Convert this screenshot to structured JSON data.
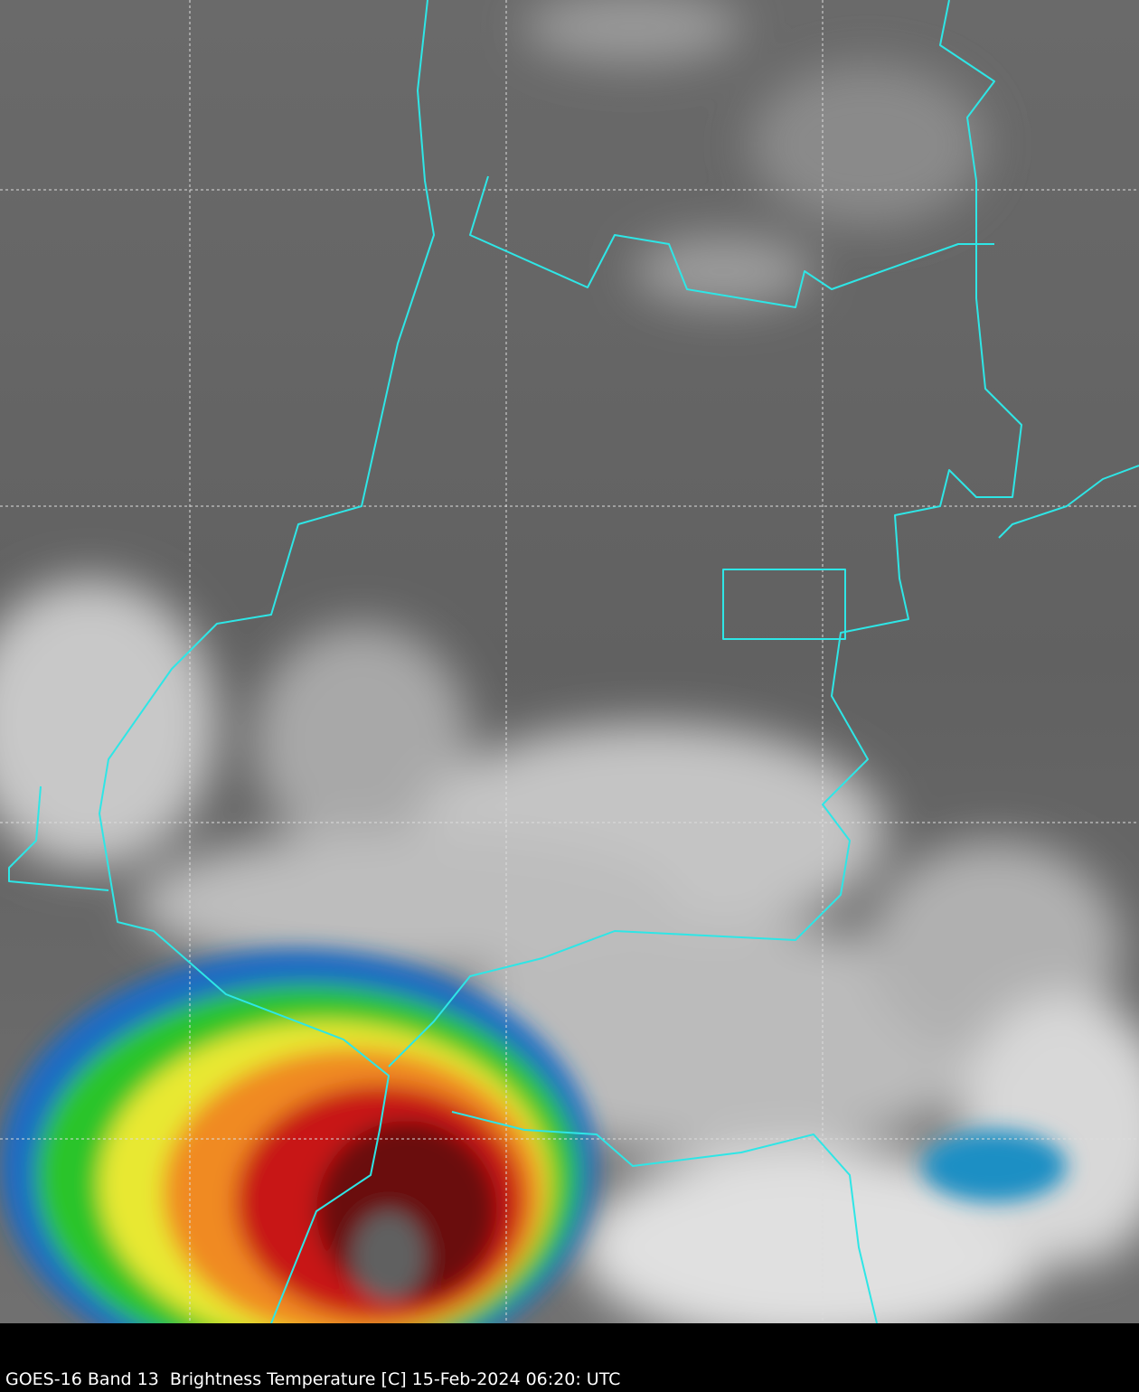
{
  "caption": "GOES-16 Band 13  Brightness Temperature [C] 15-Feb-2024 06:20: UTC"
}
